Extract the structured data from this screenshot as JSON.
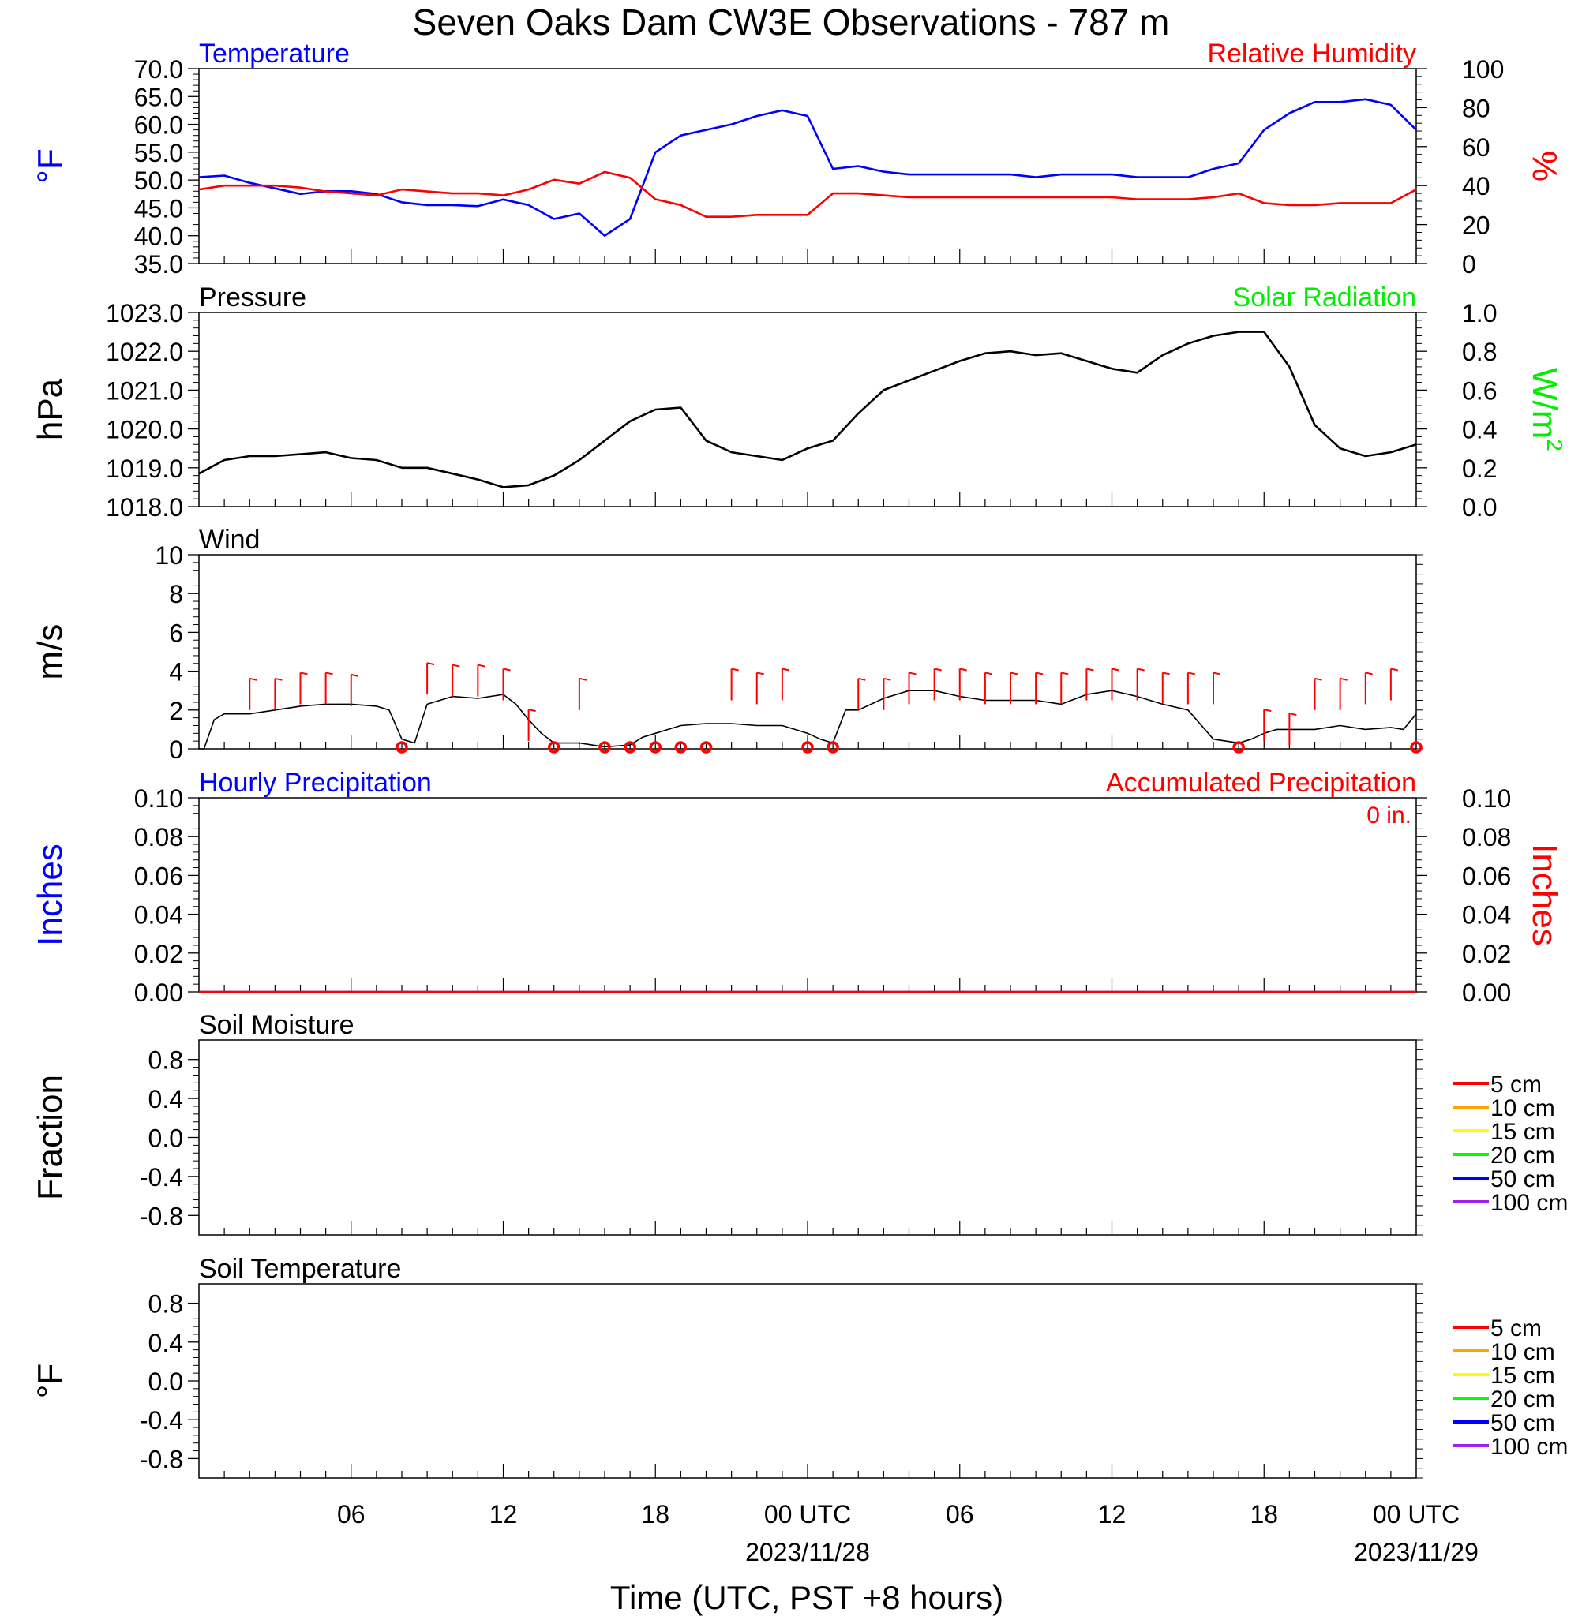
{
  "title": "Seven Oaks Dam CW3E Observations - 787 m",
  "x_axis": {
    "label": "Time (UTC, PST +8 hours)",
    "range_hours": [
      0,
      48
    ],
    "ticks": [
      {
        "hour": 6,
        "label": "06",
        "sub": ""
      },
      {
        "hour": 12,
        "label": "12",
        "sub": ""
      },
      {
        "hour": 18,
        "label": "18",
        "sub": ""
      },
      {
        "hour": 24,
        "label": "00 UTC",
        "sub": "2023/11/28"
      },
      {
        "hour": 30,
        "label": "06",
        "sub": ""
      },
      {
        "hour": 36,
        "label": "12",
        "sub": ""
      },
      {
        "hour": 42,
        "label": "18",
        "sub": ""
      },
      {
        "hour": 48,
        "label": "00 UTC",
        "sub": "2023/11/29"
      }
    ]
  },
  "colors": {
    "temperature": "#0000ff",
    "humidity": "#ff0000",
    "solar": "#00ee00",
    "pressure": "#000000",
    "wind": "#000000",
    "barb": "#ff0000",
    "precip_hourly": "#0000ff",
    "precip_accum": "#ff0000"
  },
  "chart_data": [
    {
      "type": "line",
      "panel": "temperature",
      "left_title": "Temperature",
      "right_title": "Relative Humidity",
      "ylabel_left": "°F",
      "ylabel_right": "%",
      "ylim_left": [
        35,
        70
      ],
      "ylim_right": [
        0,
        100
      ],
      "yticks_left": [
        "35.0",
        "40.0",
        "45.0",
        "50.0",
        "55.0",
        "60.0",
        "65.0",
        "70.0"
      ],
      "yticks_right": [
        "0",
        "20",
        "40",
        "60",
        "80",
        "100"
      ],
      "series": [
        {
          "name": "Temperature",
          "axis": "left",
          "x": [
            0,
            1,
            2,
            3,
            4,
            5,
            6,
            7,
            8,
            9,
            10,
            11,
            12,
            13,
            14,
            15,
            16,
            17,
            18,
            19,
            20,
            21,
            22,
            23,
            24,
            25,
            26,
            27,
            28,
            29,
            30,
            31,
            32,
            33,
            34,
            35,
            36,
            37,
            38,
            39,
            40,
            41,
            42,
            43,
            44,
            45,
            46,
            47,
            48
          ],
          "y": [
            50.5,
            50.8,
            49.5,
            48.5,
            47.5,
            48.0,
            48.0,
            47.5,
            46.0,
            45.5,
            45.5,
            45.3,
            46.5,
            45.5,
            43.0,
            44.0,
            40.0,
            43.0,
            55.0,
            58.0,
            59.0,
            60.0,
            61.5,
            62.5,
            61.5,
            52.0,
            52.5,
            51.5,
            51.0,
            51.0,
            51.0,
            51.0,
            51.0,
            50.5,
            51.0,
            51.0,
            51.0,
            50.5,
            50.5,
            50.5,
            52.0,
            53.0,
            59.0,
            62.0,
            64.0,
            64.0,
            64.5,
            63.5,
            59.0
          ]
        },
        {
          "name": "Relative Humidity",
          "axis": "right",
          "x": [
            0,
            1,
            2,
            3,
            4,
            5,
            6,
            7,
            8,
            9,
            10,
            11,
            12,
            13,
            14,
            15,
            16,
            17,
            18,
            19,
            20,
            21,
            22,
            23,
            24,
            25,
            26,
            27,
            28,
            29,
            30,
            31,
            32,
            33,
            34,
            35,
            36,
            37,
            38,
            39,
            40,
            41,
            42,
            43,
            44,
            45,
            46,
            47,
            48
          ],
          "y": [
            38,
            40,
            40,
            40,
            39,
            37,
            36,
            35,
            38,
            37,
            36,
            36,
            35,
            38,
            43,
            41,
            47,
            44,
            33,
            30,
            24,
            24,
            25,
            25,
            25,
            36,
            36,
            35,
            34,
            34,
            34,
            34,
            34,
            34,
            34,
            34,
            34,
            33,
            33,
            33,
            34,
            36,
            31,
            30,
            30,
            31,
            31,
            31,
            38
          ]
        }
      ]
    },
    {
      "type": "line",
      "panel": "pressure",
      "left_title": "Pressure",
      "right_title": "Solar Radiation",
      "ylabel_left": "hPa",
      "ylabel_right": "W/m",
      "ylabel_right_sup": "2",
      "ylim_left": [
        1018,
        1023
      ],
      "ylim_right": [
        0,
        1
      ],
      "yticks_left": [
        "1018.0",
        "1019.0",
        "1020.0",
        "1021.0",
        "1022.0",
        "1023.0"
      ],
      "yticks_right": [
        "0.0",
        "0.2",
        "0.4",
        "0.6",
        "0.8",
        "1.0"
      ],
      "series": [
        {
          "name": "Pressure",
          "axis": "left",
          "x": [
            0,
            1,
            2,
            3,
            4,
            5,
            6,
            7,
            8,
            9,
            10,
            11,
            12,
            13,
            14,
            15,
            16,
            17,
            18,
            19,
            20,
            21,
            22,
            23,
            24,
            25,
            26,
            27,
            28,
            29,
            30,
            31,
            32,
            33,
            34,
            35,
            36,
            37,
            38,
            39,
            40,
            41,
            42,
            43,
            44,
            45,
            46,
            47,
            48
          ],
          "y": [
            1018.85,
            1019.2,
            1019.3,
            1019.3,
            1019.35,
            1019.4,
            1019.25,
            1019.2,
            1019.0,
            1019.0,
            1018.85,
            1018.7,
            1018.5,
            1018.55,
            1018.8,
            1019.2,
            1019.7,
            1020.2,
            1020.5,
            1020.55,
            1019.7,
            1019.4,
            1019.3,
            1019.2,
            1019.5,
            1019.7,
            1020.4,
            1021.0,
            1021.25,
            1021.5,
            1021.75,
            1021.95,
            1022.0,
            1021.9,
            1021.95,
            1021.75,
            1021.55,
            1021.45,
            1021.9,
            1022.2,
            1022.4,
            1022.5,
            1022.5,
            1021.6,
            1020.1,
            1019.5,
            1019.3,
            1019.4,
            1019.6
          ]
        }
      ]
    },
    {
      "type": "line",
      "panel": "wind",
      "left_title": "Wind",
      "ylabel_left": "m/s",
      "ylim_left": [
        0,
        10
      ],
      "yticks_left": [
        "0",
        "2",
        "4",
        "6",
        "8",
        "10"
      ],
      "series": [
        {
          "name": "Wind",
          "axis": "left",
          "x": [
            0,
            0.2,
            0.6,
            1,
            2,
            3,
            4,
            5,
            6,
            7,
            7.5,
            8,
            8.5,
            9,
            10,
            11,
            12,
            12.5,
            13,
            13.5,
            14,
            14.5,
            15,
            16,
            17,
            17.5,
            18,
            18.5,
            19,
            20,
            21,
            22,
            23,
            23.5,
            24,
            24.5,
            25,
            25.5,
            26,
            27,
            28,
            29,
            30,
            31,
            32,
            33,
            34,
            35,
            36,
            37,
            38,
            39,
            40,
            41,
            41.5,
            42,
            42.5,
            43,
            44,
            45,
            46,
            47,
            47.5,
            48
          ],
          "y": [
            0,
            0,
            1.5,
            1.8,
            1.8,
            2.0,
            2.2,
            2.3,
            2.3,
            2.2,
            2.0,
            0.5,
            0.3,
            2.3,
            2.7,
            2.6,
            2.8,
            2.3,
            1.5,
            0.8,
            0.3,
            0.3,
            0.3,
            0.1,
            0.2,
            0.6,
            0.8,
            1.0,
            1.2,
            1.3,
            1.3,
            1.2,
            1.2,
            1.0,
            0.8,
            0.5,
            0.3,
            2.0,
            2.0,
            2.6,
            3.0,
            3.0,
            2.7,
            2.5,
            2.5,
            2.5,
            2.3,
            2.8,
            3.0,
            2.7,
            2.3,
            2.0,
            0.5,
            0.3,
            0.5,
            0.8,
            1.0,
            1.0,
            1.0,
            1.2,
            1.0,
            1.1,
            1.0,
            1.8
          ]
        },
        {
          "name": "Barb stations",
          "axis": "left",
          "x": [
            2,
            3,
            4,
            5,
            6,
            8,
            9,
            10,
            11,
            12,
            13,
            14,
            15,
            16,
            17,
            18,
            19,
            20,
            21,
            22,
            23,
            24,
            25,
            26,
            27,
            28,
            29,
            30,
            31,
            32,
            33,
            34,
            35,
            36,
            37,
            38,
            39,
            40,
            41,
            42,
            43,
            44,
            45,
            46,
            47,
            48
          ],
          "y": [
            2,
            2,
            2.3,
            2.3,
            2.2,
            0,
            2.8,
            2.7,
            2.7,
            2.5,
            0.4,
            0,
            2,
            0,
            0,
            0,
            0,
            0,
            2.5,
            2.3,
            2.5,
            0,
            0,
            2,
            2,
            2.3,
            2.5,
            2.5,
            2.3,
            2.3,
            2.3,
            2.3,
            2.5,
            2.5,
            2.5,
            2.3,
            2.3,
            2.3,
            0,
            0.4,
            0.2,
            2,
            2,
            2.3,
            2.5,
            0
          ]
        }
      ]
    },
    {
      "type": "line",
      "panel": "precipitation",
      "left_title": "Hourly Precipitation",
      "right_title": "Accumulated Precipitation",
      "annotation": "0 in.",
      "ylabel_left": "Inches",
      "ylabel_right": "Inches",
      "ylim_left": [
        0,
        0.1
      ],
      "ylim_right": [
        0,
        0.1
      ],
      "yticks_left": [
        "0.00",
        "0.02",
        "0.04",
        "0.06",
        "0.08",
        "0.10"
      ],
      "yticks_right": [
        "0.00",
        "0.02",
        "0.04",
        "0.06",
        "0.08",
        "0.10"
      ],
      "series": [
        {
          "name": "Hourly Precipitation",
          "axis": "left",
          "x": [
            0,
            48
          ],
          "y": [
            0,
            0
          ]
        },
        {
          "name": "Accumulated Precipitation",
          "axis": "right",
          "x": [
            0,
            48
          ],
          "y": [
            0,
            0
          ]
        }
      ]
    },
    {
      "type": "line",
      "panel": "soil_moisture",
      "left_title": "Soil Moisture",
      "ylabel_left": "Fraction",
      "ylim_left": [
        -1,
        1
      ],
      "yticks_left": [
        "-0.8",
        "-0.4",
        "0.0",
        "0.4",
        "0.8"
      ],
      "legend": [
        "5 cm",
        "10 cm",
        "15 cm",
        "20 cm",
        "50 cm",
        "100 cm"
      ],
      "series": []
    },
    {
      "type": "line",
      "panel": "soil_temperature",
      "left_title": "Soil Temperature",
      "ylabel_left": "°F",
      "ylim_left": [
        -1,
        1
      ],
      "yticks_left": [
        "-0.8",
        "-0.4",
        "0.0",
        "0.4",
        "0.8"
      ],
      "legend": [
        "5 cm",
        "10 cm",
        "15 cm",
        "20 cm",
        "50 cm",
        "100 cm"
      ],
      "series": []
    }
  ],
  "legend_colors": [
    "#ff0000",
    "#ffa500",
    "#ffff00",
    "#00ff00",
    "#0000ff",
    "#a020f0"
  ]
}
